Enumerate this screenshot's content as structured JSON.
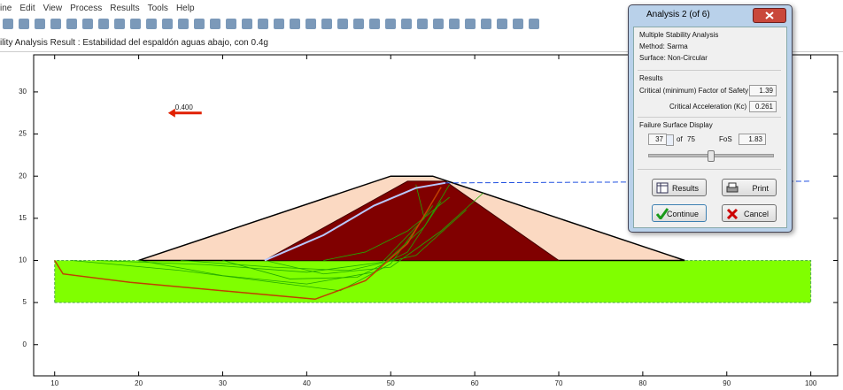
{
  "menu": [
    "ine",
    "Edit",
    "View",
    "Process",
    "Results",
    "Tools",
    "Help"
  ],
  "view_title": "ility Analysis Result : Estabilidad del espaldón aguas abajo, con 0.4g",
  "chart_data": {
    "type": "section",
    "xlim": [
      7.5,
      103.2
    ],
    "ylim": [
      -3.7,
      34.4
    ],
    "xticks": [
      10,
      20,
      30,
      40,
      50,
      60,
      70,
      80,
      90,
      100
    ],
    "yticks": [
      0,
      5,
      10,
      15,
      20,
      25,
      30
    ],
    "foundation": {
      "color": "#80ff00",
      "points": [
        [
          10,
          5
        ],
        [
          100,
          5
        ],
        [
          100,
          10
        ],
        [
          10,
          10
        ]
      ]
    },
    "shell": {
      "color": "#fbd9c2",
      "points": [
        [
          20,
          10
        ],
        [
          50,
          20
        ],
        [
          55,
          20
        ],
        [
          85,
          10
        ]
      ]
    },
    "core": {
      "color": "#800000",
      "points": [
        [
          35,
          10
        ],
        [
          52,
          19.4
        ],
        [
          56.5,
          19.4
        ],
        [
          70,
          10
        ]
      ]
    },
    "water": {
      "color": "#2050e0",
      "points": [
        [
          56.5,
          19.2
        ],
        [
          100,
          19.4
        ]
      ]
    },
    "phreatic": {
      "color": "#b8c8ff",
      "points": [
        [
          35,
          10
        ],
        [
          42,
          13
        ],
        [
          48,
          16.5
        ],
        [
          53,
          18.6
        ],
        [
          56.5,
          19.2
        ]
      ]
    },
    "critical_surface": {
      "color": "#c04000",
      "points": [
        [
          10,
          10
        ],
        [
          11,
          8.4
        ],
        [
          19,
          7.4
        ],
        [
          41,
          5.4
        ],
        [
          47,
          7.6
        ],
        [
          52,
          12
        ],
        [
          56,
          18.7
        ]
      ]
    },
    "slip_surfaces": {
      "color": "#22aa00",
      "lines": [
        [
          [
            20,
            10
          ],
          [
            30,
            8.2
          ],
          [
            40,
            7.2
          ],
          [
            48,
            8.6
          ],
          [
            54,
            14
          ],
          [
            57,
            19
          ]
        ],
        [
          [
            30,
            10
          ],
          [
            38,
            7.8
          ],
          [
            46,
            8
          ],
          [
            52,
            11
          ],
          [
            56,
            17
          ]
        ],
        [
          [
            12,
            10
          ],
          [
            25,
            8.8
          ],
          [
            44,
            6.4
          ],
          [
            50,
            9.6
          ],
          [
            55,
            16.5
          ]
        ],
        [
          [
            35,
            10
          ],
          [
            42,
            8.4
          ],
          [
            50,
            9.2
          ],
          [
            56,
            13.5
          ],
          [
            61,
            18
          ]
        ],
        [
          [
            25,
            10
          ],
          [
            36,
            9.2
          ],
          [
            45,
            8.8
          ],
          [
            53,
            10.6
          ],
          [
            59,
            16
          ]
        ],
        [
          [
            42,
            10
          ],
          [
            47,
            11
          ],
          [
            52,
            13.5
          ],
          [
            57,
            17.5
          ]
        ],
        [
          [
            15,
            10
          ],
          [
            28,
            9.5
          ],
          [
            40,
            8.6
          ],
          [
            49,
            9.8
          ],
          [
            54,
            15
          ],
          [
            53,
            19
          ]
        ]
      ]
    },
    "seismic": {
      "label": "0.400",
      "color": "#e02000",
      "x": [
        27.5,
        23.5
      ],
      "y": [
        27.5,
        27.5
      ]
    }
  },
  "dialog": {
    "title": "Analysis 2 (of 6)",
    "group": "Multiple Stability Analysis",
    "method": "Method: Sarma",
    "surface": "Surface: Non-Circular",
    "results_heading": "Results",
    "fos_label": "Critical (minimum) Factor of Safety",
    "fos_value": "1.39",
    "kc_label": "Critical Acceleration (Kc)",
    "kc_value": "0.261",
    "display_heading": "Failure Surface Display",
    "surface_index": 37,
    "of": "of",
    "surface_count": 75,
    "fos_short": "FoS",
    "surface_fos": "1.83",
    "buttons": [
      "Results",
      "Print",
      "Continue",
      "Cancel"
    ]
  }
}
